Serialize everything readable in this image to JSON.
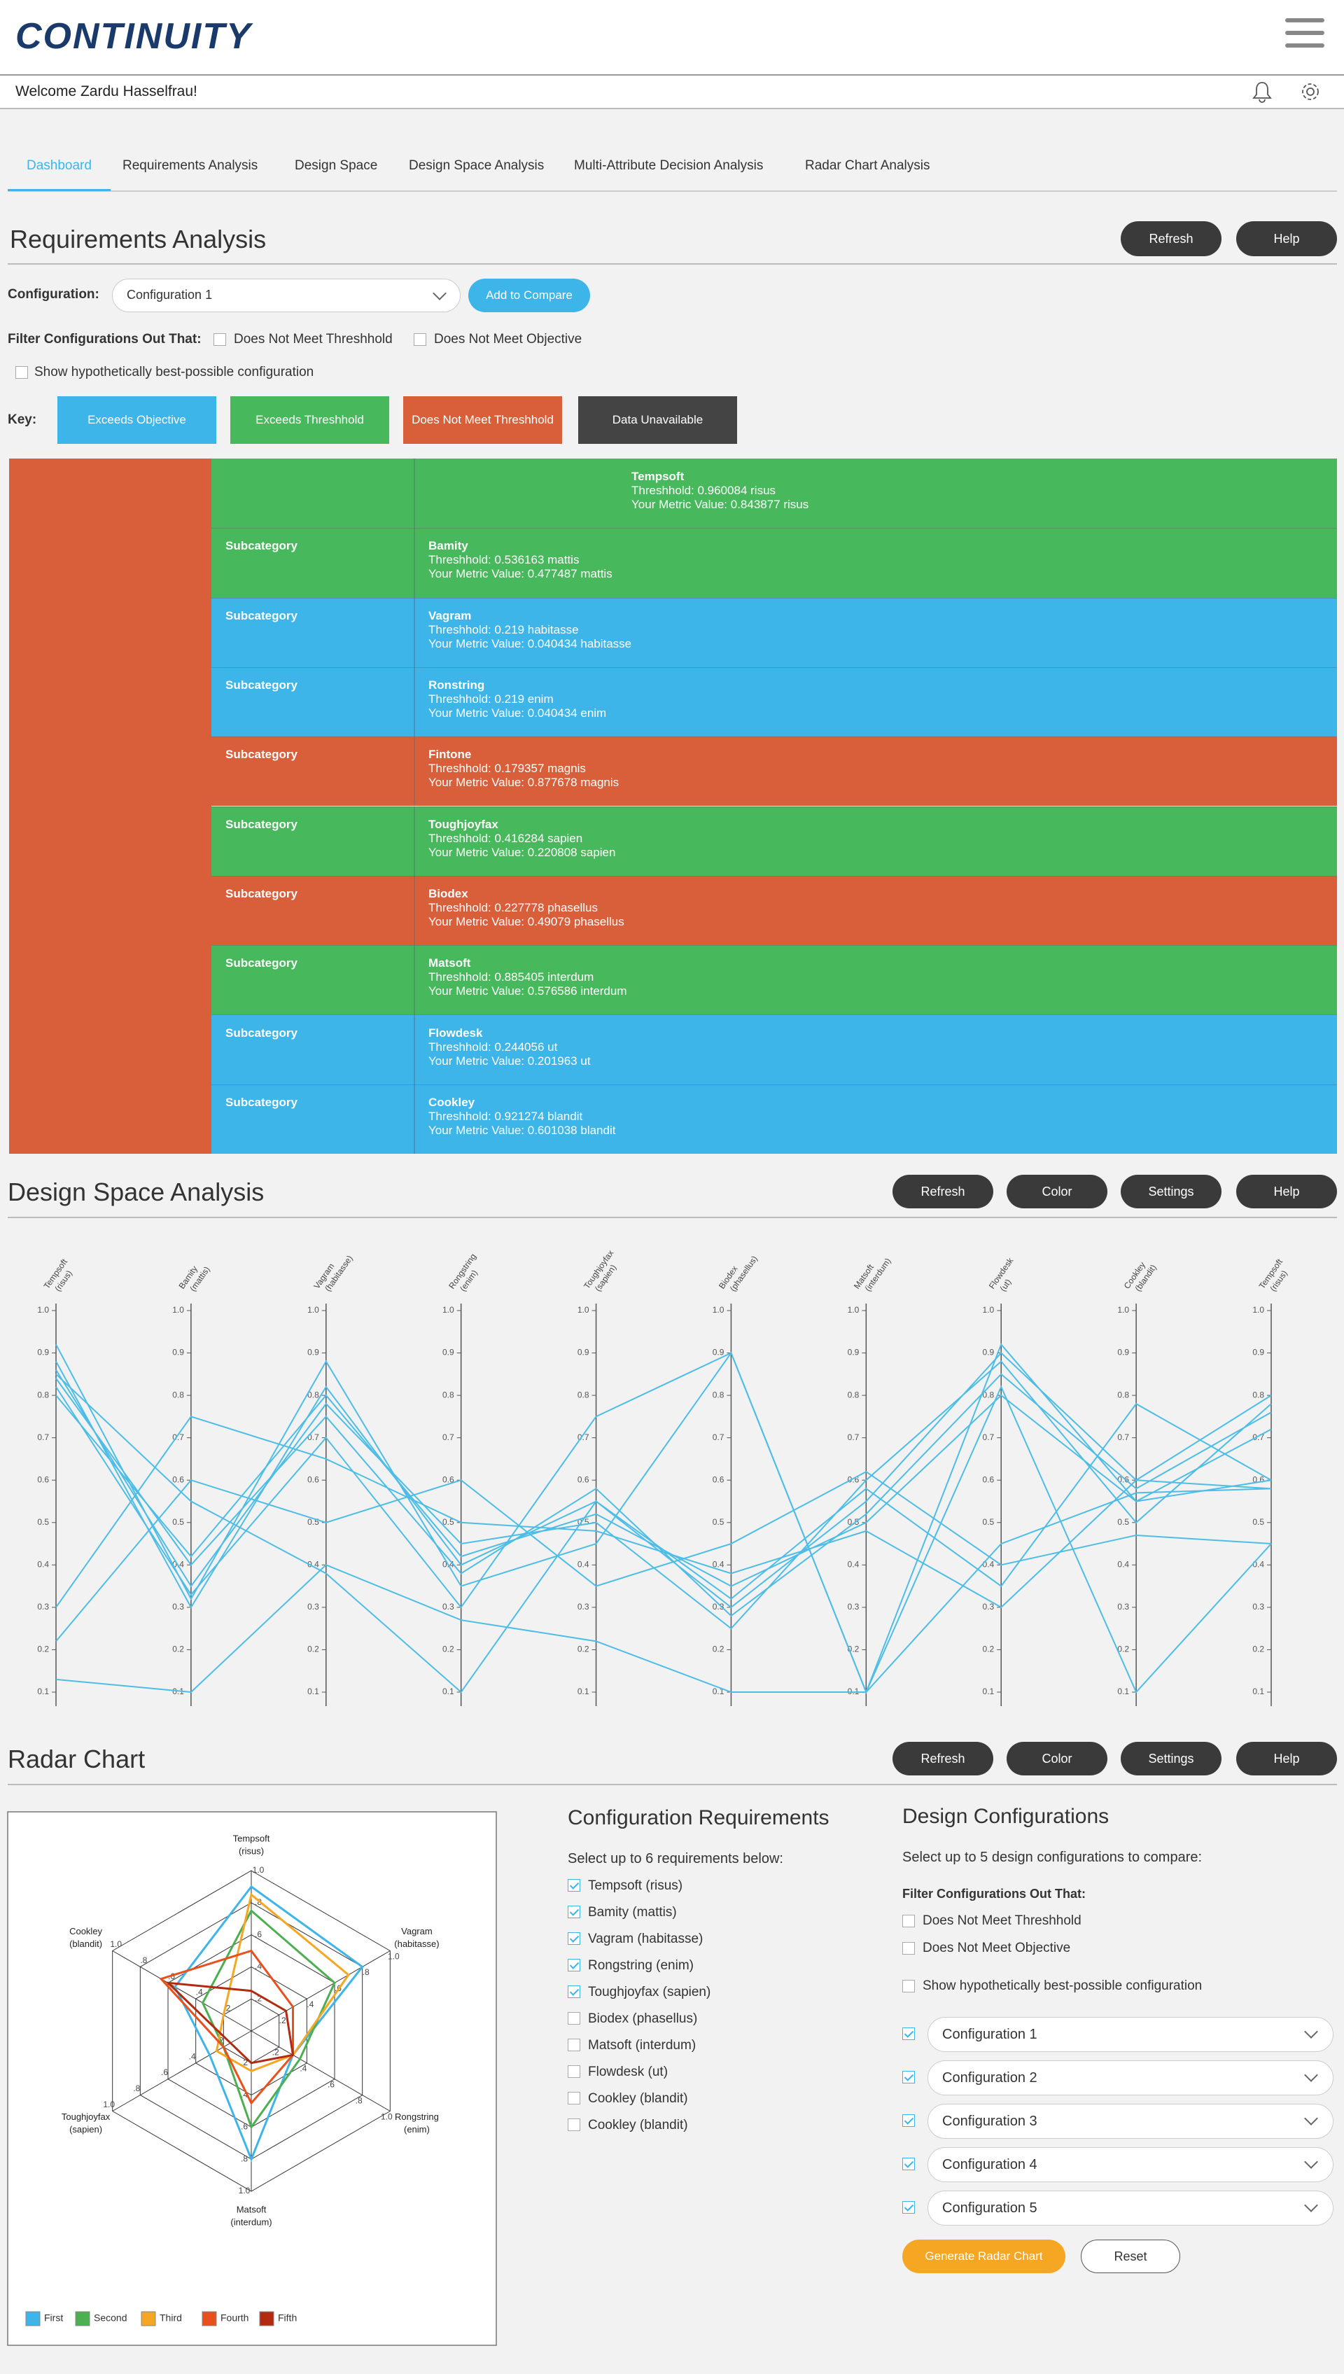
{
  "header": {
    "logo": "CONTINUITY",
    "welcome": "Welcome Zardu Hasselfrau!"
  },
  "tabs": [
    "Dashboard",
    "Requirements Analysis",
    "Design Space",
    "Design Space Analysis",
    "Multi-Attribute Decision Analysis",
    "Radar Chart Analysis"
  ],
  "requirements": {
    "title": "Requirements Analysis",
    "buttons": [
      "Refresh",
      "Help"
    ],
    "config_label": "Configuration:",
    "config_value": "Configuration 1",
    "add_button": "Add to Compare",
    "filter_label": "Filter Configurations Out That:",
    "filters": [
      "Does Not Meet Threshhold",
      "Does Not Meet Objective"
    ],
    "best": "Show hypothetically best-possible configuration",
    "key_label": "Key:",
    "key": [
      {
        "label": "Exceeds Objective",
        "color": "#3db5e8"
      },
      {
        "label": "Exceeds Threshhold",
        "color": "#48b85c"
      },
      {
        "label": "Does Not Meet Threshhold",
        "color": "#d95f3b"
      },
      {
        "label": "Data Unavailable",
        "color": "#444444"
      }
    ],
    "category_color": "#d95f3b",
    "rows": [
      {
        "name": "Tempsoft",
        "threshold": "Threshhold: 0.960084 risus",
        "metric": "Your Metric Value: 0.843877 risus",
        "color": "#48b85c"
      },
      {
        "subcategory": "Subcategory",
        "name": "Bamity",
        "threshold": "Threshhold: 0.536163 mattis",
        "metric": "Your Metric Value: 0.477487 mattis",
        "color": "#48b85c"
      },
      {
        "subcategory": "Subcategory",
        "name": "Vagram",
        "threshold": "Threshhold: 0.219 habitasse",
        "metric": "Your Metric Value: 0.040434 habitasse",
        "color": "#3db5e8"
      },
      {
        "subcategory": "Subcategory",
        "name": "Ronstring",
        "threshold": "Threshhold: 0.219 enim",
        "metric": "Your Metric Value: 0.040434 enim",
        "color": "#3db5e8"
      },
      {
        "subcategory": "Subcategory",
        "name": "Fintone",
        "threshold": "Threshhold: 0.179357 magnis",
        "metric": "Your Metric Value: 0.877678 magnis",
        "color": "#d95f3b"
      },
      {
        "subcategory": "Subcategory",
        "name": "Toughjoyfax",
        "threshold": "Threshhold: 0.416284 sapien",
        "metric": "Your Metric Value: 0.220808 sapien",
        "color": "#48b85c"
      },
      {
        "subcategory": "Subcategory",
        "name": "Biodex",
        "threshold": "Threshhold: 0.227778 phasellus",
        "metric": "Your Metric Value: 0.49079 phasellus",
        "color": "#d95f3b"
      },
      {
        "subcategory": "Subcategory",
        "name": "Matsoft",
        "threshold": "Threshhold: 0.885405 interdum",
        "metric": "Your Metric Value: 0.576586 interdum",
        "color": "#48b85c"
      },
      {
        "subcategory": "Subcategory",
        "name": "Flowdesk",
        "threshold": "Threshhold: 0.244056 ut",
        "metric": "Your Metric Value: 0.201963 ut",
        "color": "#3db5e8"
      },
      {
        "subcategory": "Subcategory",
        "name": "Cookley",
        "threshold": "Threshhold: 0.921274 blandit",
        "metric": "Your Metric Value: 0.601038 blandit",
        "color": "#3db5e8"
      }
    ]
  },
  "design_space": {
    "title": "Design Space Analysis",
    "buttons": [
      "Refresh",
      "Color",
      "Settings",
      "Help"
    ]
  },
  "radar_section": {
    "title": "Radar Chart",
    "buttons": [
      "Refresh",
      "Color",
      "Settings",
      "Help"
    ],
    "config_req": {
      "title": "Configuration Requirements",
      "instruction": "Select up to 6 requirements below:",
      "items": [
        {
          "label": "Tempsoft (risus)",
          "checked": true
        },
        {
          "label": "Bamity (mattis)",
          "checked": true
        },
        {
          "label": "Vagram (habitasse)",
          "checked": true
        },
        {
          "label": "Rongstring (enim)",
          "checked": true
        },
        {
          "label": "Toughjoyfax (sapien)",
          "checked": true
        },
        {
          "label": "Biodex (phasellus)",
          "checked": false
        },
        {
          "label": "Matsoft (interdum)",
          "checked": false
        },
        {
          "label": "Flowdesk (ut)",
          "checked": false
        },
        {
          "label": "Cookley (blandit)",
          "checked": false
        },
        {
          "label": "Cookley (blandit)",
          "checked": false
        }
      ]
    },
    "design_configs": {
      "title": "Design Configurations",
      "instruction": "Select up to 5 design configurations to compare:",
      "filter_label": "Filter Configurations Out That:",
      "filters": [
        "Does Not Meet Threshhold",
        "Does Not Meet Objective"
      ],
      "best": "Show hypothetically best-possible configuration",
      "configs": [
        {
          "label": "Configuration 1",
          "checked": true
        },
        {
          "label": "Configuration 2",
          "checked": true
        },
        {
          "label": "Configuration 3",
          "checked": true
        },
        {
          "label": "Configuration 4",
          "checked": true
        },
        {
          "label": "Configuration 5",
          "checked": true
        }
      ],
      "generate": "Generate Radar Chart",
      "reset": "Reset"
    }
  },
  "chart_data": [
    {
      "type": "parallel",
      "categories": [
        "Tempsoft",
        "Bamity",
        "Vagram",
        "Rongstring",
        "Toughjoyfax",
        "Biodex",
        "Matsoft",
        "Flowdesk",
        "Cookley",
        "Tempsoft"
      ],
      "units": [
        "(risus)",
        "(mattis)",
        "(habitasse)",
        "(enim)",
        "(sapien)",
        "(phasellus)",
        "(interdum)",
        "(ut)",
        "(blandit)",
        "(risus)"
      ],
      "ylim": [
        0.1,
        1
      ],
      "yticks": [
        0.1,
        0.2,
        0.3,
        0.4,
        0.5,
        0.6,
        0.7,
        0.8,
        0.9,
        {
          "value": 1,
          "label": "1.0"
        }
      ],
      "series": [
        {
          "color": "#4dbde6",
          "values": [
            0.92,
            0.32,
            0.88,
            0.35,
            0.45,
            0.9,
            0.1,
            0.92,
            0.55,
            0.6
          ]
        },
        {
          "color": "#4dbde6",
          "values": [
            0.88,
            0.3,
            0.82,
            0.4,
            0.55,
            0.3,
            0.55,
            0.9,
            0.6,
            0.8
          ]
        },
        {
          "color": "#4dbde6",
          "values": [
            0.86,
            0.35,
            0.78,
            0.45,
            0.5,
            0.25,
            0.6,
            0.88,
            0.5,
            0.78
          ]
        },
        {
          "color": "#4dbde6",
          "values": [
            0.84,
            0.4,
            0.75,
            0.38,
            0.58,
            0.28,
            0.52,
            0.85,
            0.58,
            0.76
          ]
        },
        {
          "color": "#4dbde6",
          "values": [
            0.82,
            0.33,
            0.7,
            0.3,
            0.75,
            0.9,
            0.1,
            0.82,
            0.1,
            0.45
          ]
        },
        {
          "color": "#4dbde6",
          "values": [
            0.8,
            0.42,
            0.8,
            0.42,
            0.52,
            0.35,
            0.5,
            0.8,
            0.55,
            0.72
          ]
        },
        {
          "color": "#4dbde6",
          "values": [
            0.3,
            0.75,
            0.65,
            0.5,
            0.48,
            0.38,
            0.48,
            0.3,
            0.6,
            0.58
          ]
        },
        {
          "color": "#4dbde6",
          "values": [
            0.22,
            0.6,
            0.5,
            0.6,
            0.35,
            0.45,
            0.62,
            0.4,
            0.47,
            0.45
          ]
        },
        {
          "color": "#4dbde6",
          "values": [
            0.13,
            0.1,
            0.4,
            0.27,
            0.22,
            0.1,
            0.1,
            0.45,
            0.57,
            0.58
          ]
        },
        {
          "color": "#4dbde6",
          "values": [
            0.85,
            0.55,
            0.38,
            0.1,
            0.55,
            0.32,
            0.58,
            0.35,
            0.78,
            0.6
          ]
        }
      ]
    },
    {
      "type": "radar",
      "axes": [
        "Tempsoft",
        "Vagram",
        "Rongstring",
        "Matsoft",
        "Toughjoyfax",
        "Cookley"
      ],
      "units": [
        "(risus)",
        "(habitasse)",
        "(enim)",
        "(interdum)",
        "(sapien)",
        "(blandit)"
      ],
      "rlim": [
        0,
        1
      ],
      "rticks": [
        {
          "value": 0.2,
          "label": ".2"
        },
        {
          "value": 0.4,
          "label": ".4"
        },
        {
          "value": 0.6,
          "label": ".6"
        },
        {
          "value": 0.8,
          "label": ".8"
        },
        {
          "value": 1,
          "label": "1.0"
        }
      ],
      "legend": "bottom-left",
      "series": [
        {
          "name": "First",
          "color": "#3db5e8",
          "values": [
            0.9,
            0.8,
            0.3,
            0.8,
            0.3,
            0.55
          ]
        },
        {
          "name": "Second",
          "color": "#4caf50",
          "values": [
            0.75,
            0.6,
            0.35,
            0.6,
            0.2,
            0.35
          ]
        },
        {
          "name": "Third",
          "color": "#f5a623",
          "values": [
            0.85,
            0.7,
            0.3,
            0.25,
            0.25,
            0.2
          ]
        },
        {
          "name": "Fourth",
          "color": "#e8501e",
          "values": [
            0.5,
            0.3,
            0.3,
            0.45,
            0.2,
            0.65
          ]
        },
        {
          "name": "Fifth",
          "color": "#b22a10",
          "values": [
            0.25,
            0.25,
            0.3,
            0.2,
            0.15,
            0.6
          ]
        }
      ]
    }
  ]
}
